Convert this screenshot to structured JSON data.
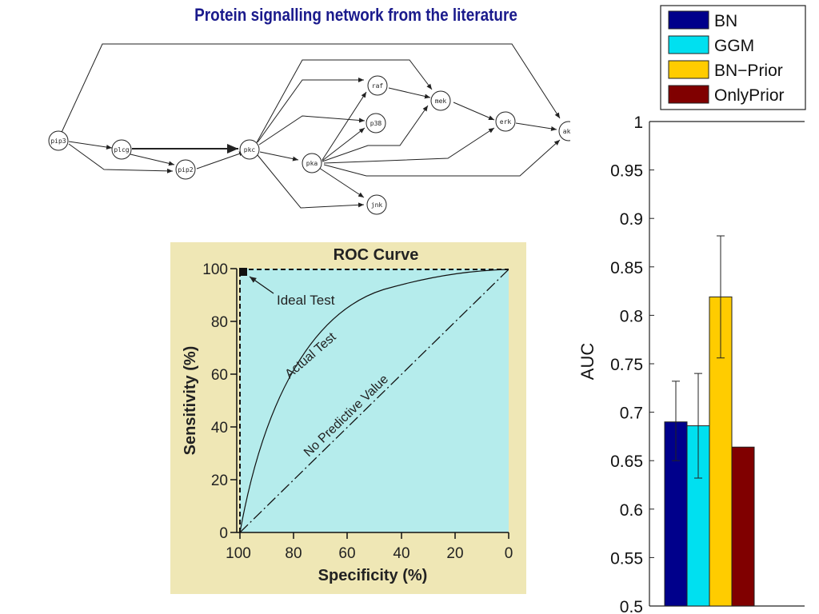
{
  "title": "Protein signalling network from the literature",
  "network": {
    "nodes": [
      "pip3",
      "plcg",
      "pip2",
      "pkc",
      "pka",
      "raf",
      "p38",
      "mek",
      "erk",
      "akt",
      "jnk"
    ]
  },
  "roc": {
    "title": "ROC Curve",
    "xlabel": "Specificity (%)",
    "ylabel": "Sensitivity (%)",
    "x_ticks": [
      "100",
      "80",
      "60",
      "40",
      "20",
      "0"
    ],
    "y_ticks": [
      "0",
      "20",
      "40",
      "60",
      "80",
      "100"
    ],
    "ideal_label": "Ideal Test",
    "actual_label": "Actual Test",
    "nopred_label": "No Predictive Value",
    "colors": {
      "panel": "#efe7b5",
      "plot": "#b5ecec"
    }
  },
  "chart_data": {
    "type": "bar",
    "ylabel": "AUC",
    "ylim": [
      0.5,
      1
    ],
    "y_ticks": [
      "0.5",
      "0.55",
      "0.6",
      "0.65",
      "0.7",
      "0.75",
      "0.8",
      "0.85",
      "0.9",
      "0.95",
      "1"
    ],
    "legend_placement": "top",
    "series": [
      {
        "name": "BN",
        "value": 0.69,
        "err_low": 0.65,
        "err_high": 0.732,
        "color": "#00008b"
      },
      {
        "name": "GGM",
        "value": 0.686,
        "err_low": 0.632,
        "err_high": 0.74,
        "color": "#00e0f0"
      },
      {
        "name": "BN−Prior",
        "value": 0.819,
        "err_low": 0.756,
        "err_high": 0.882,
        "color": "#ffcc00"
      },
      {
        "name": "OnlyPrior",
        "value": 0.664,
        "color": "#800000"
      }
    ]
  }
}
